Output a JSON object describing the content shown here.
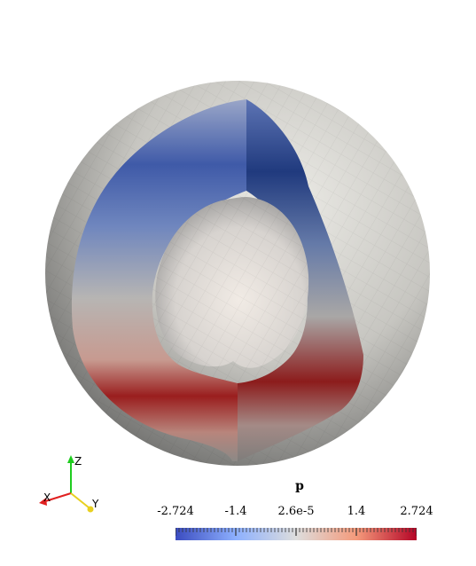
{
  "view": {
    "background": "#ffffff",
    "render": {
      "object": "sphere-with-cutaway",
      "colormap": [
        "#3b4cc0",
        "#dddddd",
        "#b40426"
      ],
      "surface_color": "#d8d6d0"
    }
  },
  "axes_widget": {
    "z_label": "Z",
    "x_label": "X",
    "y_label": "Y",
    "z_color": "#1fcc1f",
    "x_color": "#e02020",
    "y_color": "#e8d020"
  },
  "colorbar": {
    "title": "p",
    "ticks": [
      "-2.724",
      "-1.4",
      "2.6e-5",
      "1.4",
      "2.724"
    ],
    "min": -2.724,
    "max": 2.724
  }
}
